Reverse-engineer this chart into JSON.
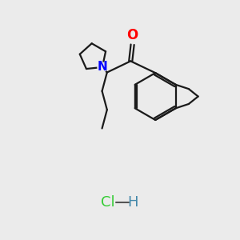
{
  "bg_color": "#ebebeb",
  "bond_color": "#1a1a1a",
  "o_color": "#ff0000",
  "n_color": "#0000ff",
  "hcl_color": "#33cc33",
  "h_color": "#4488aa",
  "n_text": "N",
  "o_text": "O",
  "hcl_text": "Cl",
  "h_text": "H",
  "bx": 6.5,
  "by": 6.0,
  "R": 1.0
}
